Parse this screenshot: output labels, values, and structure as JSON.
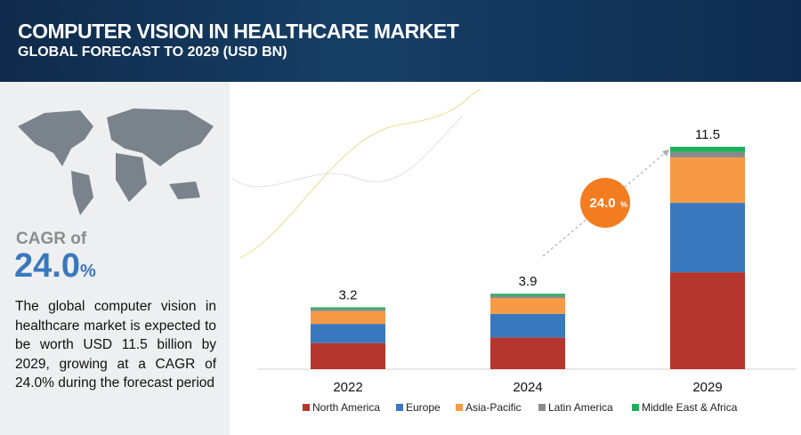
{
  "chart_data": {
    "type": "stacked-bar",
    "title": "COMPUTER VISION IN HEALTHCARE MARKET",
    "subtitle": "GLOBAL FORECAST TO 2029 (USD BN)",
    "cagr_label": "CAGR of",
    "cagr_value": "24.0",
    "cagr_unit": "%",
    "description": "The global computer vision in healthcare market is expected to be worth USD 11.5 billion by 2029, growing at a CAGR of 24.0% during the forecast period",
    "categories": [
      "2022",
      "2024",
      "2029"
    ],
    "totals": [
      3.2,
      3.9,
      11.5
    ],
    "series": [
      {
        "name": "North America",
        "color": "#b5362d",
        "values": [
          1.35,
          1.64,
          5.01
        ]
      },
      {
        "name": "Europe",
        "color": "#3a78bd",
        "values": [
          0.99,
          1.22,
          3.59
        ]
      },
      {
        "name": "Asia-Pacific",
        "color": "#f79a45",
        "values": [
          0.66,
          0.81,
          2.35
        ]
      },
      {
        "name": "Latin America",
        "color": "#8a8a8a",
        "values": [
          0.11,
          0.13,
          0.28
        ]
      },
      {
        "name": "Middle East & Africa",
        "color": "#1fae5a",
        "values": [
          0.09,
          0.1,
          0.27
        ]
      }
    ]
  }
}
